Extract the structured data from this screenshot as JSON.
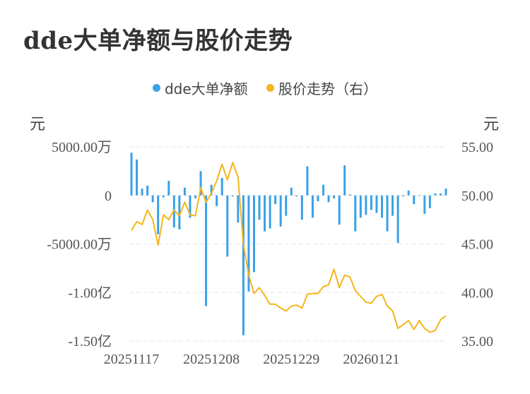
{
  "title": "dde大单净额与股价走势",
  "legend": [
    {
      "label": "dde大单净额",
      "color": "#3aa0e8"
    },
    {
      "label": "股价走势（右）",
      "color": "#f5b51b"
    }
  ],
  "units": {
    "left": "元",
    "right": "元"
  },
  "chart_data": {
    "type": "bar+line",
    "x": [
      "20251117",
      "20251118",
      "20251119",
      "20251120",
      "20251121",
      "20251124",
      "20251125",
      "20251126",
      "20251127",
      "20251128",
      "20251201",
      "20251202",
      "20251203",
      "20251204",
      "20251205",
      "20251208",
      "20251209",
      "20251210",
      "20251211",
      "20251212",
      "20251215",
      "20251216",
      "20251217",
      "20251218",
      "20251219",
      "20251222",
      "20251223",
      "20251224",
      "20251225",
      "20251226",
      "20251229",
      "20251230",
      "20251231",
      "20260105",
      "20260106",
      "20260107",
      "20260108",
      "20260109",
      "20260112",
      "20260113",
      "20260114",
      "20260115",
      "20260116",
      "20260119",
      "20260120",
      "20260121",
      "20260122",
      "20260123",
      "20260126",
      "20260127",
      "20260128",
      "20260129",
      "20260130",
      "20260202",
      "20260203",
      "20260204",
      "20260205",
      "20260206",
      "20260209",
      "20260210"
    ],
    "x_tick_labels": [
      "20251117",
      "20251208",
      "20251229",
      "20260121"
    ],
    "x_tick_index": [
      0,
      15,
      30,
      45
    ],
    "left_axis": {
      "ticks": [
        5000,
        0,
        -5000,
        -10000,
        -15000
      ],
      "tick_labels": [
        "5000.00万",
        "0",
        "-5000.00万",
        "-1.00亿",
        "-1.50亿"
      ],
      "range": [
        -15000,
        5000
      ],
      "unit": "万元"
    },
    "right_axis": {
      "ticks": [
        55,
        50,
        45,
        40,
        35
      ],
      "tick_labels": [
        "55.00",
        "50.00",
        "45.00",
        "40.00",
        "35.00"
      ],
      "range": [
        35,
        55
      ]
    },
    "series": [
      {
        "name": "dde大单净额",
        "type": "bar",
        "color": "#3aa0e8",
        "values": [
          4400,
          3700,
          700,
          1000,
          -700,
          -4000,
          -200,
          1500,
          -3300,
          -3500,
          800,
          -2300,
          -300,
          2500,
          -11400,
          1100,
          -1100,
          1800,
          -6300,
          -100,
          -2800,
          -14400,
          -9900,
          -7900,
          -2500,
          -3700,
          -3400,
          -900,
          -3200,
          -2100,
          800,
          -100,
          -2500,
          3000,
          -2300,
          -600,
          1100,
          -700,
          -300,
          -3000,
          3100,
          100,
          -3700,
          -2300,
          -2000,
          -1500,
          -1800,
          -2300,
          -3700,
          -2100,
          -4900,
          -100,
          500,
          -900,
          0,
          -1900,
          -1300,
          200,
          200,
          700
        ]
      },
      {
        "name": "股价走势（右）",
        "type": "line",
        "color": "#f5b51b",
        "axis": "right",
        "values": [
          46.4,
          47.3,
          47.0,
          48.5,
          47.5,
          44.9,
          48.0,
          47.5,
          48.5,
          47.9,
          49.3,
          48.0,
          47.9,
          50.8,
          49.3,
          50.2,
          51.5,
          53.2,
          51.6,
          53.4,
          51.9,
          45.0,
          41.8,
          39.9,
          40.5,
          39.7,
          38.8,
          38.8,
          38.4,
          38.1,
          38.6,
          38.7,
          38.4,
          39.8,
          39.9,
          39.9,
          40.6,
          40.8,
          42.4,
          40.5,
          41.8,
          41.6,
          40.2,
          39.6,
          39.0,
          38.9,
          39.6,
          39.8,
          38.6,
          38.1,
          36.3,
          36.7,
          37.1,
          36.2,
          37.1,
          36.3,
          35.9,
          36.1,
          37.2,
          37.6
        ]
      }
    ]
  }
}
